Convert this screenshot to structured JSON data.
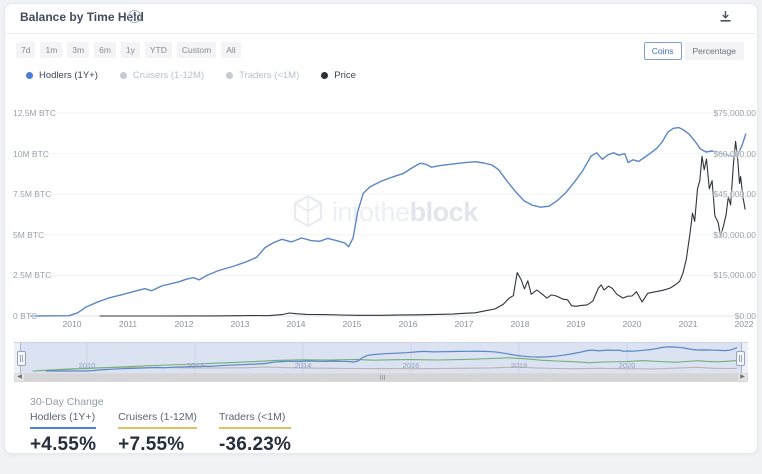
{
  "header": {
    "title": "Balance by Time Held",
    "help_icon": "?",
    "download_icon": "download"
  },
  "controls": {
    "ranges": [
      "7d",
      "1m",
      "3m",
      "6m",
      "1y",
      "YTD",
      "Custom",
      "All"
    ],
    "unit_toggle": {
      "options": [
        "Coins",
        "Percentage"
      ],
      "selected": "Coins"
    }
  },
  "legend": {
    "items": [
      {
        "label": "Hodlers (1Y+)",
        "color": "#4d7fd1",
        "active": true
      },
      {
        "label": "Cruisers (1-12M)",
        "color": "#c6cbd4",
        "active": false
      },
      {
        "label": "Traders (<1M)",
        "color": "#c6cbd4",
        "active": false
      },
      {
        "label": "Price",
        "color": "#2b2f38",
        "active": true
      }
    ]
  },
  "watermark": {
    "text_light": "intothe",
    "text_bold": "block"
  },
  "chart_data": {
    "type": "line",
    "title": "Balance by Time Held",
    "x_axis": {
      "ticks": [
        "2010",
        "2011",
        "2012",
        "2013",
        "2014",
        "2015",
        "2016",
        "2017",
        "2018",
        "2019",
        "2020",
        "2021",
        "2022"
      ],
      "range": [
        2009.25,
        2022.1
      ]
    },
    "y_axis_left": {
      "unit": "M BTC",
      "max": 12.5,
      "ticks": [
        {
          "label": "12.5M BTC",
          "value": 12.5
        },
        {
          "label": "10M BTC",
          "value": 10
        },
        {
          "label": "7.5M BTC",
          "value": 7.5
        },
        {
          "label": "5M BTC",
          "value": 5
        },
        {
          "label": "2.5M BTC",
          "value": 2.5
        },
        {
          "label": "0 BTC",
          "value": 0
        }
      ]
    },
    "y_axis_right": {
      "unit": "USD",
      "max": 75000,
      "ticks": [
        {
          "label": "$75,000.00",
          "value": 75000
        },
        {
          "label": "$60,000.00",
          "value": 60000
        },
        {
          "label": "$45,000.00",
          "value": 45000
        },
        {
          "label": "$30,000.00",
          "value": 30000
        },
        {
          "label": "$15,000.00",
          "value": 15000
        },
        {
          "label": "$0.00",
          "value": 0
        }
      ]
    },
    "series": [
      {
        "name": "Hodlers (1Y+)",
        "axis": "left",
        "unit": "M BTC",
        "color": "#5a87c5",
        "shown_in": "main+navigator",
        "points": [
          [
            2009.25,
            0
          ],
          [
            2009.95,
            0.02
          ],
          [
            2010.1,
            0.2
          ],
          [
            2010.25,
            0.55
          ],
          [
            2010.45,
            0.85
          ],
          [
            2010.65,
            1.1
          ],
          [
            2010.9,
            1.32
          ],
          [
            2011.15,
            1.55
          ],
          [
            2011.3,
            1.68
          ],
          [
            2011.42,
            1.56
          ],
          [
            2011.6,
            1.85
          ],
          [
            2011.9,
            2.1
          ],
          [
            2012.05,
            2.27
          ],
          [
            2012.17,
            2.36
          ],
          [
            2012.27,
            2.22
          ],
          [
            2012.42,
            2.52
          ],
          [
            2012.62,
            2.8
          ],
          [
            2012.87,
            3.05
          ],
          [
            2013.1,
            3.32
          ],
          [
            2013.3,
            3.62
          ],
          [
            2013.45,
            4.22
          ],
          [
            2013.6,
            4.52
          ],
          [
            2013.75,
            4.72
          ],
          [
            2013.92,
            4.56
          ],
          [
            2014.1,
            4.8
          ],
          [
            2014.27,
            4.64
          ],
          [
            2014.42,
            4.6
          ],
          [
            2014.57,
            4.78
          ],
          [
            2014.72,
            4.64
          ],
          [
            2014.87,
            4.5
          ],
          [
            2014.94,
            4.26
          ],
          [
            2015.02,
            4.8
          ],
          [
            2015.1,
            6.4
          ],
          [
            2015.2,
            7.55
          ],
          [
            2015.32,
            7.95
          ],
          [
            2015.52,
            8.3
          ],
          [
            2015.72,
            8.55
          ],
          [
            2015.92,
            8.78
          ],
          [
            2016.1,
            9.18
          ],
          [
            2016.22,
            9.4
          ],
          [
            2016.32,
            9.34
          ],
          [
            2016.42,
            9.16
          ],
          [
            2016.57,
            9.26
          ],
          [
            2016.72,
            9.32
          ],
          [
            2016.9,
            9.4
          ],
          [
            2017.05,
            9.46
          ],
          [
            2017.2,
            9.5
          ],
          [
            2017.35,
            9.42
          ],
          [
            2017.5,
            9.3
          ],
          [
            2017.62,
            9.0
          ],
          [
            2017.77,
            8.3
          ],
          [
            2017.92,
            7.66
          ],
          [
            2018.07,
            7.1
          ],
          [
            2018.22,
            6.82
          ],
          [
            2018.37,
            6.7
          ],
          [
            2018.52,
            6.76
          ],
          [
            2018.67,
            7.12
          ],
          [
            2018.82,
            7.6
          ],
          [
            2018.97,
            8.24
          ],
          [
            2019.12,
            8.95
          ],
          [
            2019.27,
            9.85
          ],
          [
            2019.37,
            10.05
          ],
          [
            2019.47,
            9.65
          ],
          [
            2019.57,
            9.92
          ],
          [
            2019.67,
            10.05
          ],
          [
            2019.77,
            9.9
          ],
          [
            2019.87,
            10.0
          ],
          [
            2019.93,
            9.45
          ],
          [
            2020.02,
            9.62
          ],
          [
            2020.12,
            9.52
          ],
          [
            2020.22,
            9.76
          ],
          [
            2020.32,
            10.0
          ],
          [
            2020.44,
            10.32
          ],
          [
            2020.54,
            10.72
          ],
          [
            2020.64,
            11.32
          ],
          [
            2020.74,
            11.56
          ],
          [
            2020.84,
            11.6
          ],
          [
            2020.92,
            11.46
          ],
          [
            2021.02,
            11.2
          ],
          [
            2021.12,
            10.78
          ],
          [
            2021.22,
            10.3
          ],
          [
            2021.32,
            10.1
          ],
          [
            2021.42,
            10.16
          ],
          [
            2021.52,
            10.1
          ],
          [
            2021.62,
            10.0
          ],
          [
            2021.72,
            9.9
          ],
          [
            2021.82,
            9.82
          ],
          [
            2021.9,
            10.02
          ],
          [
            2021.97,
            10.55
          ],
          [
            2022.03,
            11.2
          ]
        ]
      },
      {
        "name": "Price",
        "axis": "right",
        "unit": "USD thousands",
        "color": "#2f333b",
        "shown_in": "main",
        "points": [
          [
            2010.5,
            0.0
          ],
          [
            2011.5,
            0.01
          ],
          [
            2012.5,
            0.02
          ],
          [
            2013.0,
            0.1
          ],
          [
            2013.25,
            0.2
          ],
          [
            2013.5,
            0.12
          ],
          [
            2013.75,
            0.5
          ],
          [
            2013.88,
            1.1
          ],
          [
            2014.0,
            0.85
          ],
          [
            2014.2,
            0.6
          ],
          [
            2014.5,
            0.5
          ],
          [
            2014.8,
            0.37
          ],
          [
            2015.1,
            0.25
          ],
          [
            2015.5,
            0.27
          ],
          [
            2015.9,
            0.4
          ],
          [
            2016.2,
            0.45
          ],
          [
            2016.5,
            0.6
          ],
          [
            2016.8,
            0.72
          ],
          [
            2017.0,
            1.0
          ],
          [
            2017.2,
            1.2
          ],
          [
            2017.4,
            2.0
          ],
          [
            2017.55,
            2.6
          ],
          [
            2017.7,
            4.3
          ],
          [
            2017.8,
            6.5
          ],
          [
            2017.88,
            7.5
          ],
          [
            2017.95,
            16.0
          ],
          [
            2018.02,
            13.5
          ],
          [
            2018.08,
            10.0
          ],
          [
            2018.14,
            13.0
          ],
          [
            2018.2,
            8.0
          ],
          [
            2018.3,
            9.6
          ],
          [
            2018.4,
            8.0
          ],
          [
            2018.48,
            6.6
          ],
          [
            2018.56,
            7.8
          ],
          [
            2018.65,
            7.4
          ],
          [
            2018.77,
            6.2
          ],
          [
            2018.85,
            6.0
          ],
          [
            2018.92,
            3.8
          ],
          [
            2019.0,
            3.6
          ],
          [
            2019.1,
            3.9
          ],
          [
            2019.2,
            4.1
          ],
          [
            2019.3,
            5.5
          ],
          [
            2019.4,
            10.3
          ],
          [
            2019.45,
            11.5
          ],
          [
            2019.5,
            9.6
          ],
          [
            2019.58,
            11.0
          ],
          [
            2019.65,
            10.2
          ],
          [
            2019.73,
            8.0
          ],
          [
            2019.84,
            6.6
          ],
          [
            2019.92,
            7.3
          ],
          [
            2020.0,
            7.4
          ],
          [
            2020.08,
            9.0
          ],
          [
            2020.18,
            5.2
          ],
          [
            2020.28,
            8.4
          ],
          [
            2020.4,
            8.9
          ],
          [
            2020.55,
            9.5
          ],
          [
            2020.68,
            10.3
          ],
          [
            2020.77,
            11.5
          ],
          [
            2020.85,
            12.8
          ],
          [
            2020.91,
            15.9
          ],
          [
            2020.97,
            21.0
          ],
          [
            2021.04,
            31.0
          ],
          [
            2021.08,
            38.0
          ],
          [
            2021.12,
            35.0
          ],
          [
            2021.17,
            47.0
          ],
          [
            2021.21,
            50.0
          ],
          [
            2021.25,
            59.0
          ],
          [
            2021.29,
            54.0
          ],
          [
            2021.33,
            58.0
          ],
          [
            2021.38,
            47.0
          ],
          [
            2021.43,
            50.0
          ],
          [
            2021.48,
            37.0
          ],
          [
            2021.54,
            34.5
          ],
          [
            2021.58,
            29.5
          ],
          [
            2021.63,
            33.0
          ],
          [
            2021.68,
            37.5
          ],
          [
            2021.72,
            44.0
          ],
          [
            2021.76,
            41.0
          ],
          [
            2021.81,
            56.0
          ],
          [
            2021.85,
            64.5
          ],
          [
            2021.89,
            57.5
          ],
          [
            2021.92,
            49.0
          ],
          [
            2021.94,
            51.5
          ],
          [
            2021.98,
            44.0
          ],
          [
            2022.02,
            39.5
          ]
        ]
      },
      {
        "name": "Cruisers (1-12M)",
        "axis": "left",
        "unit": "M BTC",
        "color": "#72b077",
        "shown_in": "navigator",
        "points": [
          [
            2009.0,
            0
          ],
          [
            2009.3,
            0.35
          ],
          [
            2009.7,
            0.85
          ],
          [
            2010.0,
            1.25
          ],
          [
            2010.5,
            1.8
          ],
          [
            2011.0,
            2.4
          ],
          [
            2011.5,
            2.9
          ],
          [
            2012.0,
            3.35
          ],
          [
            2012.5,
            3.9
          ],
          [
            2013.0,
            4.4
          ],
          [
            2013.5,
            5.1
          ],
          [
            2014.0,
            5.4
          ],
          [
            2014.5,
            5.25
          ],
          [
            2015.0,
            5.6
          ],
          [
            2015.3,
            5.2
          ],
          [
            2015.7,
            5.45
          ],
          [
            2016.0,
            5.5
          ],
          [
            2016.5,
            5.3
          ],
          [
            2017.0,
            5.6
          ],
          [
            2017.5,
            6.0
          ],
          [
            2017.8,
            6.35
          ],
          [
            2018.1,
            5.9
          ],
          [
            2018.4,
            5.2
          ],
          [
            2018.7,
            4.8
          ],
          [
            2019.0,
            4.45
          ],
          [
            2019.3,
            4.0
          ],
          [
            2019.6,
            4.35
          ],
          [
            2020.0,
            4.55
          ],
          [
            2020.3,
            4.95
          ],
          [
            2020.6,
            4.55
          ],
          [
            2020.9,
            4.2
          ],
          [
            2021.1,
            4.55
          ],
          [
            2021.3,
            4.95
          ],
          [
            2021.5,
            4.6
          ],
          [
            2021.7,
            4.4
          ],
          [
            2021.9,
            4.75
          ],
          [
            2022.03,
            5.1
          ]
        ]
      },
      {
        "name": "Traders (<1M)",
        "axis": "left",
        "unit": "M BTC",
        "color": "#bcb5ab",
        "shown_in": "navigator",
        "points": [
          [
            2009.0,
            0
          ],
          [
            2009.3,
            0.55
          ],
          [
            2009.6,
            1.0
          ],
          [
            2010.0,
            1.4
          ],
          [
            2010.5,
            1.7
          ],
          [
            2011.0,
            1.8
          ],
          [
            2011.5,
            1.62
          ],
          [
            2012.0,
            1.5
          ],
          [
            2012.5,
            1.42
          ],
          [
            2013.0,
            1.6
          ],
          [
            2013.3,
            1.9
          ],
          [
            2013.7,
            1.6
          ],
          [
            2014.0,
            1.5
          ],
          [
            2014.5,
            1.32
          ],
          [
            2015.0,
            1.2
          ],
          [
            2016.0,
            1.1
          ],
          [
            2017.0,
            1.3
          ],
          [
            2017.5,
            1.5
          ],
          [
            2017.95,
            1.95
          ],
          [
            2018.3,
            1.5
          ],
          [
            2018.7,
            1.2
          ],
          [
            2019.0,
            1.12
          ],
          [
            2019.5,
            1.3
          ],
          [
            2020.0,
            1.1
          ],
          [
            2020.5,
            1.0
          ],
          [
            2021.0,
            1.5
          ],
          [
            2021.3,
            1.8
          ],
          [
            2021.6,
            1.3
          ],
          [
            2021.9,
            1.18
          ],
          [
            2022.03,
            1.3
          ]
        ]
      }
    ],
    "legend_position": "top-left",
    "grid": "horizontal-faint"
  },
  "navigator": {
    "years": [
      "2010",
      "2012",
      "2014",
      "2016",
      "2018",
      "2020"
    ]
  },
  "change_panel": {
    "title": "30-Day Change",
    "items": [
      {
        "label": "Hodlers (1Y+)",
        "value": "+4.55%",
        "accent": "#4f7ed8"
      },
      {
        "label": "Cruisers (1-12M)",
        "value": "+7.55%",
        "accent": "#e5be63"
      },
      {
        "label": "Traders (<1M)",
        "value": "-36.23%",
        "accent": "#e5be63"
      }
    ]
  }
}
